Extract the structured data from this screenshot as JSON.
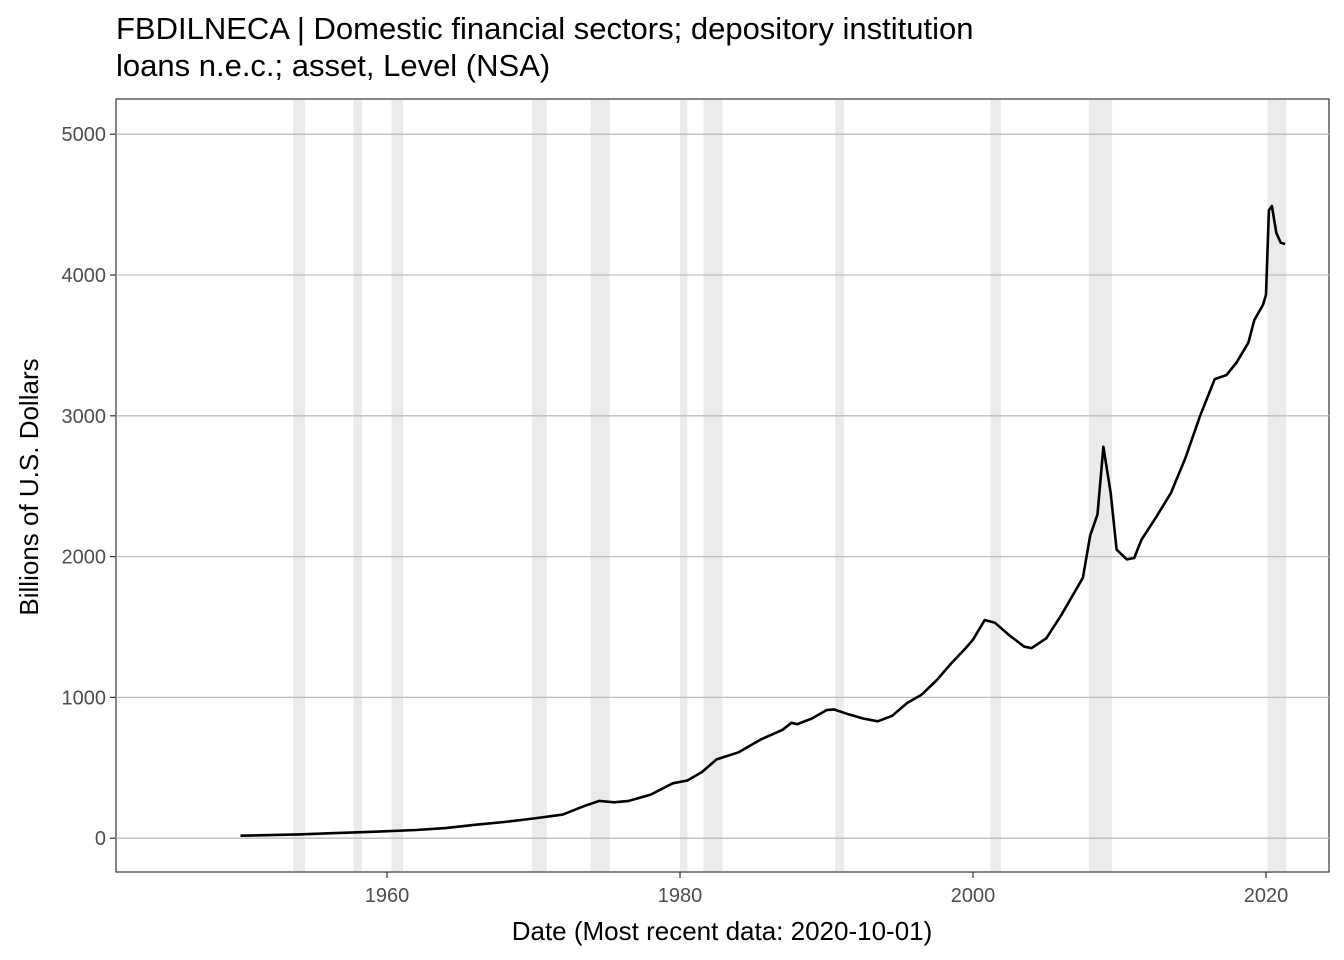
{
  "chart_data": {
    "type": "line",
    "title_lines": [
      "FBDILNECA | Domestic financial sectors; depository institution",
      "loans n.e.c.; asset, Level (NSA)"
    ],
    "xlabel": "Date (Most recent data: 2020-10-01)",
    "ylabel": "Billions of U.S. Dollars",
    "xlim": [
      1941.5,
      2024.3
    ],
    "ylim": [
      -240,
      5250
    ],
    "x_ticks": [
      1960,
      1980,
      2000,
      2020
    ],
    "y_ticks": [
      0,
      1000,
      2000,
      3000,
      4000,
      5000
    ],
    "grid": true,
    "recession_shading": [
      [
        1953.6,
        1954.4
      ],
      [
        1957.7,
        1958.3
      ],
      [
        1960.3,
        1961.1
      ],
      [
        1969.9,
        1970.9
      ],
      [
        1973.9,
        1975.2
      ],
      [
        1980.0,
        1980.5
      ],
      [
        1981.6,
        1982.9
      ],
      [
        1990.6,
        1991.2
      ],
      [
        2001.2,
        2001.9
      ],
      [
        2007.9,
        2009.5
      ],
      [
        2020.1,
        2021.4
      ]
    ],
    "series": [
      {
        "color": "#000000",
        "points": [
          [
            1950.0,
            18
          ],
          [
            1952.0,
            22
          ],
          [
            1954.0,
            27
          ],
          [
            1956.0,
            35
          ],
          [
            1958.0,
            42
          ],
          [
            1960.0,
            50
          ],
          [
            1962.0,
            58
          ],
          [
            1964.0,
            72
          ],
          [
            1966.0,
            95
          ],
          [
            1968.0,
            115
          ],
          [
            1970.0,
            140
          ],
          [
            1972.0,
            168
          ],
          [
            1973.5,
            230
          ],
          [
            1974.5,
            265
          ],
          [
            1975.5,
            255
          ],
          [
            1976.5,
            265
          ],
          [
            1978.0,
            310
          ],
          [
            1979.5,
            390
          ],
          [
            1980.5,
            410
          ],
          [
            1981.5,
            470
          ],
          [
            1982.5,
            560
          ],
          [
            1984.0,
            610
          ],
          [
            1985.5,
            700
          ],
          [
            1987.0,
            770
          ],
          [
            1987.6,
            820
          ],
          [
            1988.0,
            810
          ],
          [
            1989.0,
            850
          ],
          [
            1990.0,
            910
          ],
          [
            1990.5,
            915
          ],
          [
            1991.5,
            880
          ],
          [
            1992.5,
            850
          ],
          [
            1993.5,
            830
          ],
          [
            1994.5,
            870
          ],
          [
            1995.5,
            960
          ],
          [
            1996.5,
            1020
          ],
          [
            1997.5,
            1120
          ],
          [
            1998.5,
            1240
          ],
          [
            1999.5,
            1350
          ],
          [
            2000.0,
            1410
          ],
          [
            2000.8,
            1550
          ],
          [
            2001.5,
            1530
          ],
          [
            2002.5,
            1440
          ],
          [
            2003.5,
            1360
          ],
          [
            2004.0,
            1350
          ],
          [
            2005.0,
            1420
          ],
          [
            2006.0,
            1580
          ],
          [
            2007.0,
            1760
          ],
          [
            2007.5,
            1850
          ],
          [
            2008.0,
            2150
          ],
          [
            2008.5,
            2300
          ],
          [
            2008.9,
            2780
          ],
          [
            2009.4,
            2450
          ],
          [
            2009.8,
            2050
          ],
          [
            2010.5,
            1980
          ],
          [
            2011.0,
            1990
          ],
          [
            2011.5,
            2120
          ],
          [
            2012.5,
            2280
          ],
          [
            2013.5,
            2450
          ],
          [
            2014.5,
            2700
          ],
          [
            2015.5,
            3000
          ],
          [
            2016.5,
            3260
          ],
          [
            2017.3,
            3290
          ],
          [
            2018.0,
            3380
          ],
          [
            2018.8,
            3520
          ],
          [
            2019.2,
            3680
          ],
          [
            2019.8,
            3790
          ],
          [
            2020.0,
            3860
          ],
          [
            2020.2,
            4460
          ],
          [
            2020.4,
            4490
          ],
          [
            2020.7,
            4300
          ],
          [
            2021.0,
            4230
          ],
          [
            2021.3,
            4220
          ]
        ]
      }
    ]
  }
}
